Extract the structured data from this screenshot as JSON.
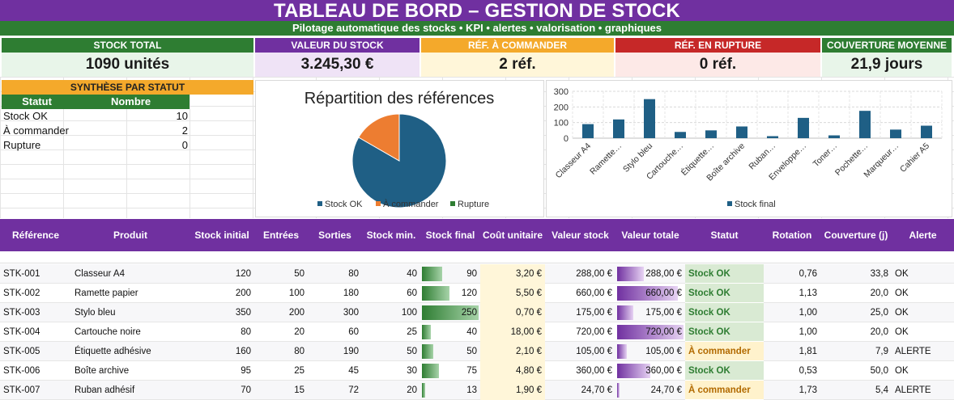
{
  "header": {
    "title": "TABLEAU DE BORD – GESTION DE STOCK",
    "subtitle": "Pilotage automatique des stocks • KPI • alertes • valorisation • graphiques"
  },
  "kpis": [
    {
      "label": "STOCK TOTAL",
      "value": "1090 unités",
      "head_color": "#2e7d32",
      "bg_color": "#e8f5e9"
    },
    {
      "label": "VALEUR DU STOCK",
      "value": "3.245,30 €",
      "head_color": "#7030a0",
      "bg_color": "#efe3f6"
    },
    {
      "label": "RÉF. À COMMANDER",
      "value": "2 réf.",
      "head_color": "#f4a92b",
      "bg_color": "#fff6d9"
    },
    {
      "label": "RÉF. EN RUPTURE",
      "value": "0 réf.",
      "head_color": "#c62828",
      "bg_color": "#fde9e7"
    },
    {
      "label": "COUVERTURE MOYENNE",
      "value": "21,9 jours",
      "head_color": "#2e7d32",
      "bg_color": "#e8f5e9"
    }
  ],
  "summary": {
    "title": "SYNTHÈSE PAR STATUT",
    "col_status": "Statut",
    "col_count": "Nombre",
    "rows": [
      {
        "label": "Stock OK",
        "count": "10"
      },
      {
        "label": "À commander",
        "count": "2"
      },
      {
        "label": "Rupture",
        "count": "0"
      }
    ]
  },
  "chart_data": [
    {
      "type": "pie",
      "title": "Répartition des références",
      "labels": [
        "Stock OK",
        "À commander",
        "Rupture"
      ],
      "values": [
        10,
        2,
        0
      ],
      "colors": [
        "#1f5f85",
        "#ed7d31",
        "#2e7d32"
      ],
      "legend": "bottom"
    },
    {
      "type": "bar",
      "title": "",
      "categories": [
        "Classeur A4",
        "Ramette…",
        "Stylo bleu",
        "Cartouche…",
        "Étiquette…",
        "Boîte archive",
        "Ruban…",
        "Enveloppe…",
        "Toner…",
        "Pochette…",
        "Marqueur…",
        "Cahier A5"
      ],
      "series": [
        {
          "name": "Stock final",
          "values": [
            90,
            120,
            250,
            40,
            50,
            75,
            13,
            130,
            18,
            175,
            55,
            80
          ]
        }
      ],
      "yticks": [
        "0",
        "100",
        "200",
        "300"
      ],
      "ylim": [
        0,
        300
      ],
      "color": "#1f5f85",
      "grid": true,
      "legend": "bottom"
    }
  ],
  "table": {
    "headers": [
      "Référence",
      "Produit",
      "Stock initial",
      "Entrées",
      "Sorties",
      "Stock min.",
      "Stock final",
      "Coût unitaire",
      "Valeur stock",
      "Valeur totale",
      "Statut",
      "Rotation",
      "Couverture (j)",
      "Alerte"
    ],
    "max_stock_final": 250,
    "max_valeur": 720,
    "rows": [
      {
        "ref": "STK-001",
        "produit": "Classeur A4",
        "initial": "120",
        "entrees": "50",
        "sorties": "80",
        "min": "40",
        "final": "90",
        "final_num": 90,
        "cout": "3,20 €",
        "valeur": "288,00 €",
        "total": "288,00 €",
        "total_num": 288,
        "statut": "Stock OK",
        "rotation": "0,76",
        "couverture": "33,8",
        "alerte": "OK"
      },
      {
        "ref": "STK-002",
        "produit": "Ramette papier",
        "initial": "200",
        "entrees": "100",
        "sorties": "180",
        "min": "60",
        "final": "120",
        "final_num": 120,
        "cout": "5,50 €",
        "valeur": "660,00 €",
        "total": "660,00 €",
        "total_num": 660,
        "statut": "Stock OK",
        "rotation": "1,13",
        "couverture": "20,0",
        "alerte": "OK"
      },
      {
        "ref": "STK-003",
        "produit": "Stylo bleu",
        "initial": "350",
        "entrees": "200",
        "sorties": "300",
        "min": "100",
        "final": "250",
        "final_num": 250,
        "cout": "0,70 €",
        "valeur": "175,00 €",
        "total": "175,00 €",
        "total_num": 175,
        "statut": "Stock OK",
        "rotation": "1,00",
        "couverture": "25,0",
        "alerte": "OK"
      },
      {
        "ref": "STK-004",
        "produit": "Cartouche noire",
        "initial": "80",
        "entrees": "20",
        "sorties": "60",
        "min": "25",
        "final": "40",
        "final_num": 40,
        "cout": "18,00 €",
        "valeur": "720,00 €",
        "total": "720,00 €",
        "total_num": 720,
        "statut": "Stock OK",
        "rotation": "1,00",
        "couverture": "20,0",
        "alerte": "OK"
      },
      {
        "ref": "STK-005",
        "produit": "Étiquette adhésive",
        "initial": "160",
        "entrees": "80",
        "sorties": "190",
        "min": "50",
        "final": "50",
        "final_num": 50,
        "cout": "2,10 €",
        "valeur": "105,00 €",
        "total": "105,00 €",
        "total_num": 105,
        "statut": "À commander",
        "rotation": "1,81",
        "couverture": "7,9",
        "alerte": "ALERTE"
      },
      {
        "ref": "STK-006",
        "produit": "Boîte archive",
        "initial": "95",
        "entrees": "25",
        "sorties": "45",
        "min": "30",
        "final": "75",
        "final_num": 75,
        "cout": "4,80 €",
        "valeur": "360,00 €",
        "total": "360,00 €",
        "total_num": 360,
        "statut": "Stock OK",
        "rotation": "0,53",
        "couverture": "50,0",
        "alerte": "OK"
      },
      {
        "ref": "STK-007",
        "produit": "Ruban adhésif",
        "initial": "70",
        "entrees": "15",
        "sorties": "72",
        "min": "20",
        "final": "13",
        "final_num": 13,
        "cout": "1,90 €",
        "valeur": "24,70 €",
        "total": "24,70 €",
        "total_num": 24.7,
        "statut": "À commander",
        "rotation": "1,73",
        "couverture": "5,4",
        "alerte": "ALERTE"
      }
    ]
  },
  "colors": {
    "purple": "#7030a0",
    "green": "#2e7d32",
    "ok_bg": "#d9ead3",
    "ok_text": "#2e7d32",
    "warn_bg": "#fff2cc",
    "warn_text": "#b26a00",
    "cost_bg": "#fff6d9"
  }
}
